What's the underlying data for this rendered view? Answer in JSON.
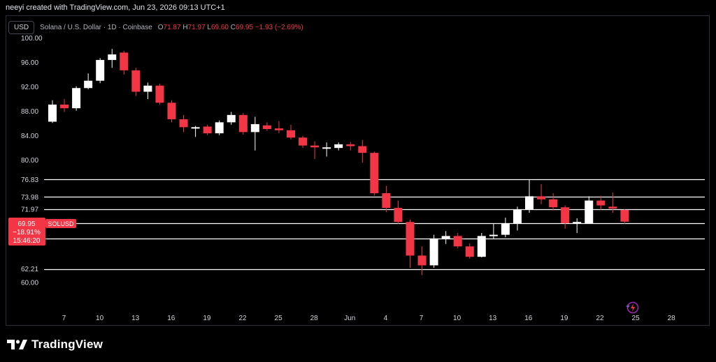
{
  "header": {
    "created_by": "neeyi created with TradingView.com, Jun 23, 2026 09:13 UTC+1"
  },
  "legend": {
    "currency_button": "USD",
    "symbol_description": "Solana / U.S. Dollar · 1D · Coinbase",
    "open_label": "O",
    "open": "71.87",
    "high_label": "H",
    "high": "71.97",
    "low_label": "L",
    "low": "69.60",
    "close_label": "C",
    "close": "69.95",
    "change": "−1.93 (−2.69%)"
  },
  "price_tag": {
    "price": "69.95",
    "change_pct": "−18.91%",
    "countdown": "15:46:20",
    "symbol": "SOLUSD"
  },
  "brand": {
    "name": "TradingView"
  },
  "icons": {
    "logo": "tradingview-logo-icon",
    "indicator": "sparkle-lightning-icon"
  },
  "colors": {
    "up": "#ffffff",
    "down": "#f23645",
    "background": "#000000",
    "level_line": "#ffffff",
    "grid": "#2a2e39"
  },
  "chart_data": {
    "type": "candlestick",
    "y_ticks": [
      "100.00",
      "96.00",
      "92.00",
      "88.00",
      "84.00",
      "80.00",
      "76.83",
      "73.98",
      "71.97",
      "69.67",
      "67.24",
      "62.21",
      "60.00"
    ],
    "x_ticks": [
      "7",
      "10",
      "13",
      "16",
      "19",
      "22",
      "25",
      "28",
      "Jun",
      "4",
      "7",
      "10",
      "13",
      "16",
      "19",
      "22",
      "25",
      "28"
    ],
    "ylim": [
      58.4,
      100.5
    ],
    "horizontal_levels": [
      76.83,
      73.98,
      71.97,
      69.67,
      67.24,
      62.21
    ],
    "grid": false,
    "candles": [
      {
        "o": 86.3,
        "h": 89.8,
        "l": 86.1,
        "c": 89.1
      },
      {
        "o": 89.1,
        "h": 90.0,
        "l": 87.9,
        "c": 88.5
      },
      {
        "o": 88.5,
        "h": 92.1,
        "l": 88.1,
        "c": 91.8
      },
      {
        "o": 91.8,
        "h": 94.2,
        "l": 91.6,
        "c": 93.0
      },
      {
        "o": 93.0,
        "h": 96.7,
        "l": 92.6,
        "c": 96.4
      },
      {
        "o": 96.4,
        "h": 98.2,
        "l": 95.1,
        "c": 97.3
      },
      {
        "o": 97.6,
        "h": 97.9,
        "l": 94.0,
        "c": 94.7
      },
      {
        "o": 94.7,
        "h": 95.1,
        "l": 90.5,
        "c": 91.2
      },
      {
        "o": 91.2,
        "h": 92.7,
        "l": 90.0,
        "c": 92.2
      },
      {
        "o": 92.2,
        "h": 92.5,
        "l": 89.1,
        "c": 89.4
      },
      {
        "o": 89.4,
        "h": 89.8,
        "l": 86.2,
        "c": 86.7
      },
      {
        "o": 86.7,
        "h": 87.4,
        "l": 84.6,
        "c": 85.4
      },
      {
        "o": 85.3,
        "h": 85.6,
        "l": 83.8,
        "c": 85.4
      },
      {
        "o": 85.5,
        "h": 85.8,
        "l": 84.1,
        "c": 84.4
      },
      {
        "o": 84.4,
        "h": 86.5,
        "l": 84.1,
        "c": 86.2
      },
      {
        "o": 86.2,
        "h": 87.9,
        "l": 85.8,
        "c": 87.4
      },
      {
        "o": 87.4,
        "h": 87.7,
        "l": 84.2,
        "c": 84.6
      },
      {
        "o": 84.6,
        "h": 87.1,
        "l": 81.6,
        "c": 85.9
      },
      {
        "o": 85.7,
        "h": 86.2,
        "l": 84.8,
        "c": 85.1
      },
      {
        "o": 85.2,
        "h": 86.4,
        "l": 84.4,
        "c": 84.9
      },
      {
        "o": 84.9,
        "h": 85.8,
        "l": 83.4,
        "c": 83.7
      },
      {
        "o": 83.7,
        "h": 84.0,
        "l": 82.0,
        "c": 82.4
      },
      {
        "o": 82.4,
        "h": 83.1,
        "l": 80.2,
        "c": 82.1
      },
      {
        "o": 82.1,
        "h": 82.9,
        "l": 80.6,
        "c": 82.1
      },
      {
        "o": 82.0,
        "h": 82.9,
        "l": 81.6,
        "c": 82.6
      },
      {
        "o": 82.6,
        "h": 83.0,
        "l": 81.6,
        "c": 82.3
      },
      {
        "o": 82.3,
        "h": 83.3,
        "l": 79.6,
        "c": 81.2
      },
      {
        "o": 81.2,
        "h": 81.4,
        "l": 74.2,
        "c": 74.6
      },
      {
        "o": 74.6,
        "h": 75.8,
        "l": 71.5,
        "c": 72.2
      },
      {
        "o": 72.2,
        "h": 73.4,
        "l": 69.6,
        "c": 69.9
      },
      {
        "o": 69.9,
        "h": 70.3,
        "l": 62.4,
        "c": 64.4
      },
      {
        "o": 64.4,
        "h": 65.9,
        "l": 61.2,
        "c": 62.8
      },
      {
        "o": 62.8,
        "h": 67.8,
        "l": 62.4,
        "c": 67.2
      },
      {
        "o": 67.2,
        "h": 68.4,
        "l": 66.3,
        "c": 67.6
      },
      {
        "o": 67.6,
        "h": 68.1,
        "l": 65.6,
        "c": 65.9
      },
      {
        "o": 65.9,
        "h": 66.4,
        "l": 63.9,
        "c": 64.2
      },
      {
        "o": 64.2,
        "h": 68.1,
        "l": 64.1,
        "c": 67.6
      },
      {
        "o": 67.6,
        "h": 69.6,
        "l": 67.1,
        "c": 67.8
      },
      {
        "o": 67.8,
        "h": 70.6,
        "l": 67.4,
        "c": 69.7
      },
      {
        "o": 69.7,
        "h": 72.4,
        "l": 68.5,
        "c": 71.9
      },
      {
        "o": 71.9,
        "h": 76.8,
        "l": 71.4,
        "c": 74.1
      },
      {
        "o": 74.1,
        "h": 76.1,
        "l": 72.8,
        "c": 73.6
      },
      {
        "o": 73.6,
        "h": 74.6,
        "l": 71.8,
        "c": 72.3
      },
      {
        "o": 72.3,
        "h": 72.6,
        "l": 68.8,
        "c": 69.7
      },
      {
        "o": 69.9,
        "h": 70.5,
        "l": 68.1,
        "c": 69.9
      },
      {
        "o": 69.7,
        "h": 74.1,
        "l": 69.7,
        "c": 73.4
      },
      {
        "o": 73.4,
        "h": 74.2,
        "l": 71.9,
        "c": 72.6
      },
      {
        "o": 72.4,
        "h": 74.7,
        "l": 71.4,
        "c": 72.1
      },
      {
        "o": 71.87,
        "h": 71.97,
        "l": 69.6,
        "c": 69.95
      }
    ]
  }
}
